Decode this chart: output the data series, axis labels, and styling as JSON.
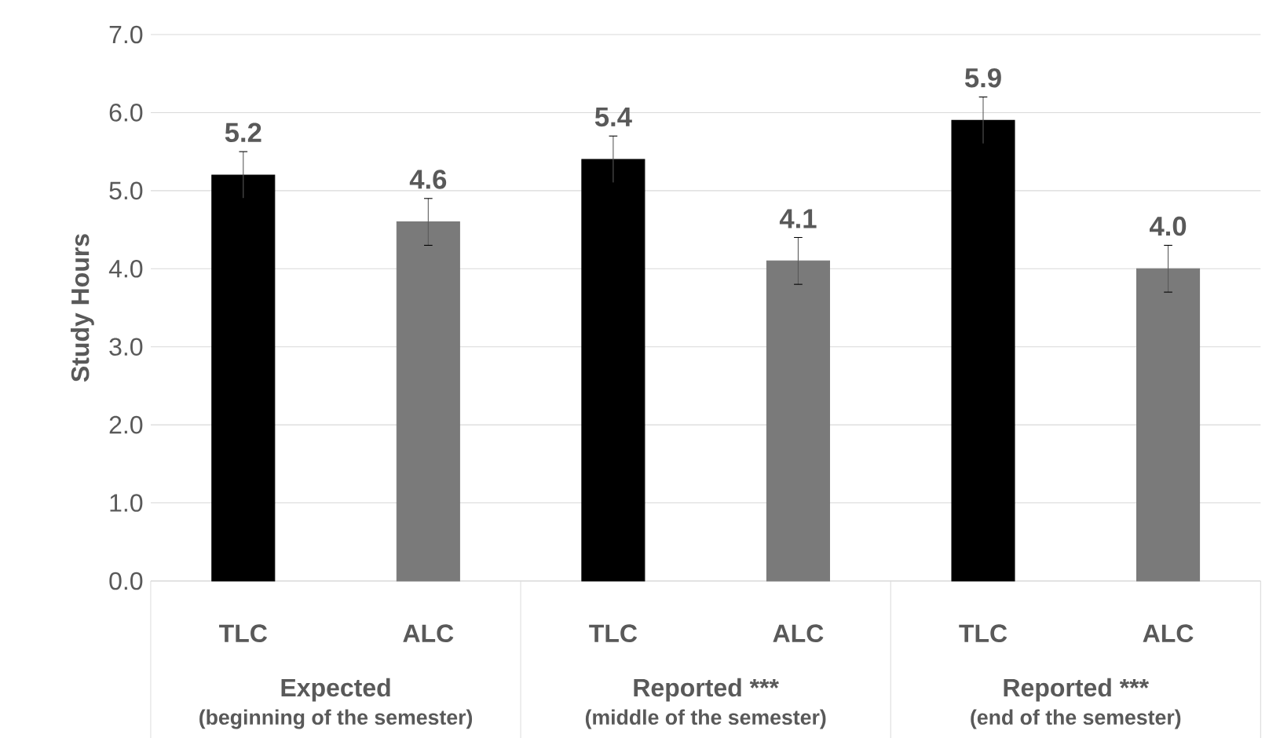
{
  "chart_data": {
    "type": "bar",
    "ylabel": "Study Hours",
    "categories": [
      "TLC",
      "ALC",
      "TLC",
      "ALC",
      "TLC",
      "ALC"
    ],
    "values": [
      5.2,
      4.6,
      5.4,
      4.1,
      5.9,
      4.0
    ],
    "errors": [
      0.3,
      0.3,
      0.3,
      0.3,
      0.3,
      0.3
    ],
    "colors": [
      "#000000",
      "#7a7a7a",
      "#000000",
      "#7a7a7a",
      "#000000",
      "#7a7a7a"
    ],
    "value_labels": [
      "5.2",
      "4.6",
      "5.4",
      "4.1",
      "5.9",
      "4.0"
    ],
    "ylim": [
      0,
      7
    ],
    "yticks": [
      {
        "value": 0,
        "label": "0.0"
      },
      {
        "value": 1,
        "label": "1.0"
      },
      {
        "value": 2,
        "label": "2.0"
      },
      {
        "value": 3,
        "label": "3.0"
      },
      {
        "value": 4,
        "label": "4.0"
      },
      {
        "value": 5,
        "label": "5.0"
      },
      {
        "value": 6,
        "label": "6.0"
      },
      {
        "value": 7,
        "label": "7.0"
      }
    ],
    "grid": "y",
    "annotations": [
      "Expected",
      "(beginning of the semester)",
      "Reported ***",
      "(middle of the semester)",
      "Reported ***",
      "(end of the semester)"
    ]
  }
}
